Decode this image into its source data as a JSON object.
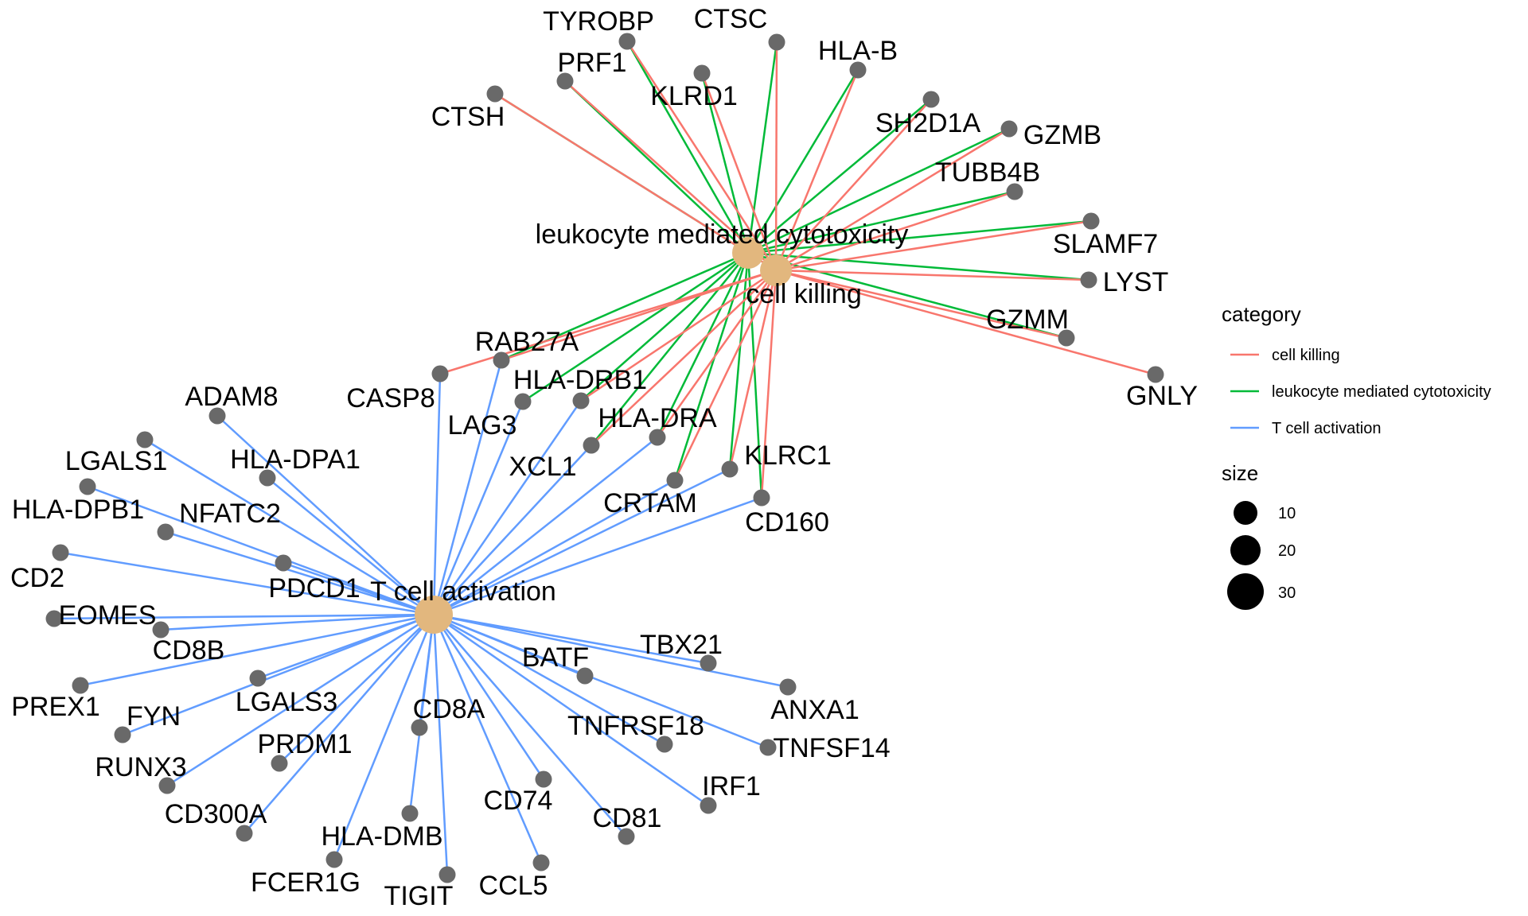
{
  "categories": [
    {
      "id": "cell_killing",
      "label": "cell killing",
      "color": "#F8766D"
    },
    {
      "id": "leukocyte_cytotox",
      "label": "leukocyte mediated cytotoxicity",
      "color": "#00BA38"
    },
    {
      "id": "t_cell_activation",
      "label": "T cell activation",
      "color": "#619CFF"
    }
  ],
  "genes": [
    "TYROBP",
    "CTSC",
    "PRF1",
    "HLA-B",
    "KLRD1",
    "CTSH",
    "SH2D1A",
    "GZMB",
    "TUBB4B",
    "SLAMF7",
    "LYST",
    "GZMM",
    "GNLY",
    "RAB27A",
    "CASP8",
    "HLA-DRB1",
    "LAG3",
    "HLA-DRA",
    "XCL1",
    "KLRC1",
    "CRTAM",
    "CD160",
    "ADAM8",
    "HLA-DPA1",
    "LGALS1",
    "HLA-DPB1",
    "NFATC2",
    "CD2",
    "PDCD1",
    "EOMES",
    "CD8B",
    "PREX1",
    "FYN",
    "LGALS3",
    "RUNX3",
    "PRDM1",
    "CD300A",
    "CD8A",
    "HLA-DMB",
    "FCER1G",
    "TIGIT",
    "CD74",
    "CCL5",
    "CD81",
    "IRF1",
    "TBX21",
    "BATF",
    "ANXA1",
    "TNFRSF18",
    "TNFSF14"
  ],
  "edges": {
    "cell_killing": [
      "TYROBP",
      "CTSC",
      "PRF1",
      "HLA-B",
      "KLRD1",
      "CTSH",
      "SH2D1A",
      "GZMB",
      "TUBB4B",
      "SLAMF7",
      "LYST",
      "GZMM",
      "GNLY",
      "RAB27A",
      "CASP8",
      "HLA-DRB1",
      "HLA-DRA",
      "XCL1",
      "KLRC1",
      "CRTAM",
      "CD160"
    ],
    "leukocyte_cytotox": [
      "TYROBP",
      "CTSC",
      "PRF1",
      "HLA-B",
      "KLRD1",
      "CTSH",
      "SH2D1A",
      "GZMB",
      "TUBB4B",
      "SLAMF7",
      "LYST",
      "GZMM",
      "RAB27A",
      "LAG3",
      "HLA-DRB1",
      "HLA-DRA",
      "XCL1",
      "KLRC1",
      "CRTAM",
      "CD160"
    ],
    "t_cell_activation": [
      "CASP8",
      "RAB27A",
      "LAG3",
      "HLA-DRB1",
      "XCL1",
      "HLA-DRA",
      "CRTAM",
      "KLRC1",
      "CD160",
      "ADAM8",
      "HLA-DPA1",
      "LGALS1",
      "HLA-DPB1",
      "NFATC2",
      "CD2",
      "PDCD1",
      "EOMES",
      "CD8B",
      "PREX1",
      "FYN",
      "LGALS3",
      "RUNX3",
      "PRDM1",
      "CD300A",
      "CD8A",
      "HLA-DMB",
      "FCER1G",
      "TIGIT",
      "CD74",
      "CCL5",
      "CD81",
      "IRF1",
      "TBX21",
      "BATF",
      "ANXA1",
      "TNFRSF18",
      "TNFSF14"
    ]
  },
  "legend": {
    "category_title": "category",
    "size_title": "size",
    "size_labels": [
      "10",
      "20",
      "30"
    ]
  },
  "colors": {
    "gene_node": "#696969",
    "category_node": "#E2B77E"
  }
}
